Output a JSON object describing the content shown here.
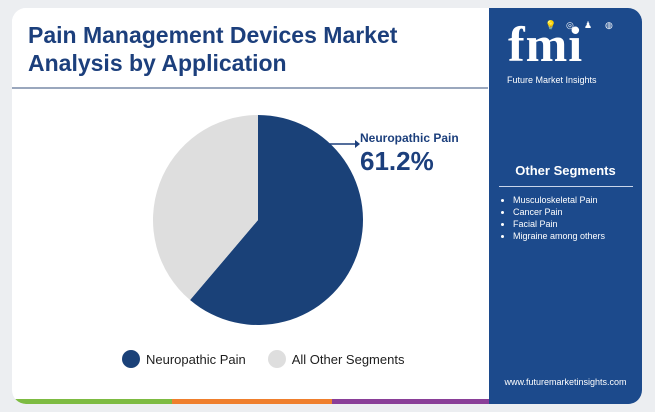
{
  "title": "Pain Management Devices Market Analysis by Application",
  "chart_data": {
    "type": "pie",
    "categories": [
      "Neuropathic Pain",
      "All Other Segments"
    ],
    "values": [
      61.2,
      38.8
    ],
    "unit": "%",
    "colors": [
      "#1a4178",
      "#dedede"
    ],
    "legend_position": "bottom",
    "annotation": {
      "label": "Neuropathic Pain",
      "value": "61.2%"
    }
  },
  "legend": [
    {
      "label": "Neuropathic Pain",
      "color": "#1a4178"
    },
    {
      "label": "All Other Segments",
      "color": "#dedede"
    }
  ],
  "sidebar": {
    "logo_text": "fmi",
    "logo_subtitle": "Future Market Insights",
    "logo_icons": [
      "lightbulb-icon",
      "target-icon",
      "person-icon",
      "globe-icon"
    ],
    "segments_title": "Other Segments",
    "segments": [
      "Musculoskeletal Pain",
      "Cancer Pain",
      "Facial Pain",
      "Migraine among others"
    ],
    "website": "www.futuremarketinsights.com",
    "background": "#1c4a8c"
  },
  "bottom_bar_colors": [
    "#7dbb42",
    "#ef7f2d",
    "#8a3f98",
    "#1c4a8c"
  ]
}
